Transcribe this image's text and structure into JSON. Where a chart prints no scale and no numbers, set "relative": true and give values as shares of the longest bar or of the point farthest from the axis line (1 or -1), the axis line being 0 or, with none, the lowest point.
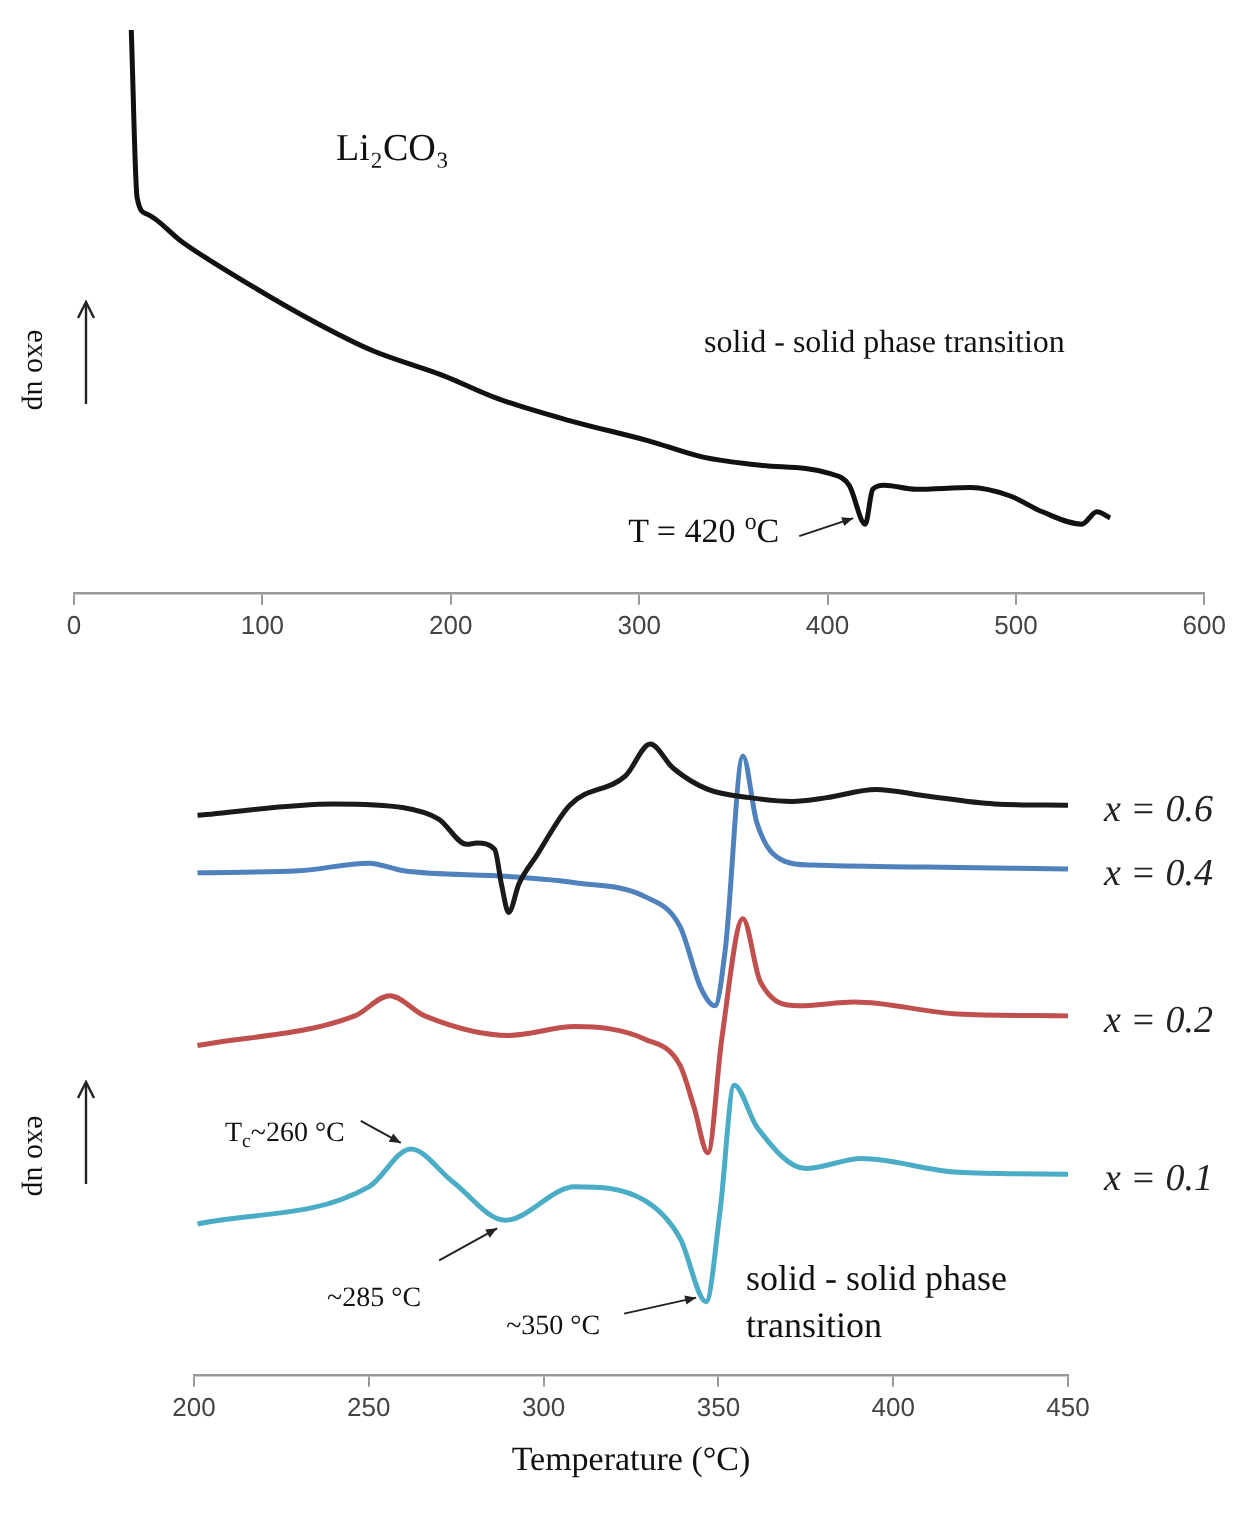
{
  "chart_data": [
    {
      "type": "line",
      "relative": true,
      "ylabel": "exo up",
      "color": "#111111",
      "marker": "none",
      "xlim": [
        0,
        600
      ],
      "xticks": [
        0,
        100,
        200,
        300,
        400,
        500,
        600
      ],
      "x": [
        30.4,
        33.5,
        38.7,
        57.6,
        95,
        129,
        158,
        196,
        225,
        263,
        305,
        334,
        363,
        401,
        411.5,
        420,
        424,
        430,
        447,
        476,
        497,
        514,
        535,
        543,
        550
      ],
      "values": [
        1,
        0.702,
        0.673,
        0.623,
        0.544,
        0.479,
        0.431,
        0.386,
        0.345,
        0.306,
        0.27,
        0.241,
        0.227,
        0.212,
        0.191,
        0.122,
        0.184,
        0.191,
        0.184,
        0.187,
        0.172,
        0.144,
        0.122,
        0.144,
        0.133
      ],
      "annotations": [
        "Li₂CO₃",
        "solid - solid phase transition",
        {
          "text": "T = 420 $^{o}$C",
          "x": 420,
          "y": 0.122
        }
      ]
    },
    {
      "type": "line",
      "relative": true,
      "xlabel": "Temperature (°C)",
      "ylabel": "exo up",
      "marker": "none",
      "xlim": [
        200,
        450
      ],
      "xticks": [
        200,
        250,
        300,
        350,
        400,
        450
      ],
      "series": [
        {
          "name": "x = 0.6",
          "color": "#1a1a1a",
          "x": [
            201,
            240,
            260,
            270,
            278,
            281,
            286,
            288,
            290,
            293,
            298,
            307.5,
            323.5,
            330.5,
            337,
            347,
            359,
            371,
            381,
            395,
            409,
            429,
            450
          ],
          "values": [
            0.887,
            0.905,
            0.899,
            0.881,
            0.841,
            0.843,
            0.833,
            0.776,
            0.733,
            0.779,
            0.823,
            0.903,
            0.95,
            1,
            0.962,
            0.928,
            0.915,
            0.909,
            0.915,
            0.928,
            0.918,
            0.905,
            0.903
          ]
        },
        {
          "name": "x = 0.4",
          "color": "#4f81bd",
          "x": [
            201,
            230,
            250,
            260,
            290,
            309,
            329,
            339,
            345,
            349,
            352,
            357,
            361,
            369,
            377,
            409,
            450
          ],
          "values": [
            0.796,
            0.799,
            0.811,
            0.799,
            0.79,
            0.78,
            0.758,
            0.711,
            0.613,
            0.585,
            0.676,
            0.981,
            0.875,
            0.814,
            0.808,
            0.805,
            0.802
          ]
        },
        {
          "name": "x = 0.2",
          "color": "#c0504d",
          "x": [
            201,
            246,
            256,
            266,
            290,
            309,
            329,
            339,
            343,
            347,
            351,
            357,
            362,
            373,
            389,
            418.5,
            450
          ],
          "values": [
            0.522,
            0.569,
            0.601,
            0.569,
            0.538,
            0.552,
            0.532,
            0.491,
            0.425,
            0.352,
            0.534,
            0.723,
            0.623,
            0.585,
            0.591,
            0.572,
            0.569
          ]
        },
        {
          "name": "x = 0.1",
          "color": "#4bacc6",
          "x": [
            201,
            250,
            262,
            274,
            289,
            309,
            329,
            339,
            346.5,
            350.5,
            354.5,
            361,
            375,
            391,
            418.5,
            450
          ],
          "values": [
            0.239,
            0.298,
            0.358,
            0.306,
            0.245,
            0.298,
            0.276,
            0.217,
            0.116,
            0.261,
            0.459,
            0.393,
            0.327,
            0.343,
            0.321,
            0.318
          ]
        }
      ],
      "annotations": [
        {
          "text": "T$_{c}$~260 °C",
          "x": 262,
          "y": 0.358
        },
        {
          "text": "~285 °C",
          "x": 289,
          "y": 0.245
        },
        {
          "text": "~350 °C",
          "x": 346.5,
          "y": 0.116
        },
        "solid - solid phase transition"
      ]
    }
  ]
}
